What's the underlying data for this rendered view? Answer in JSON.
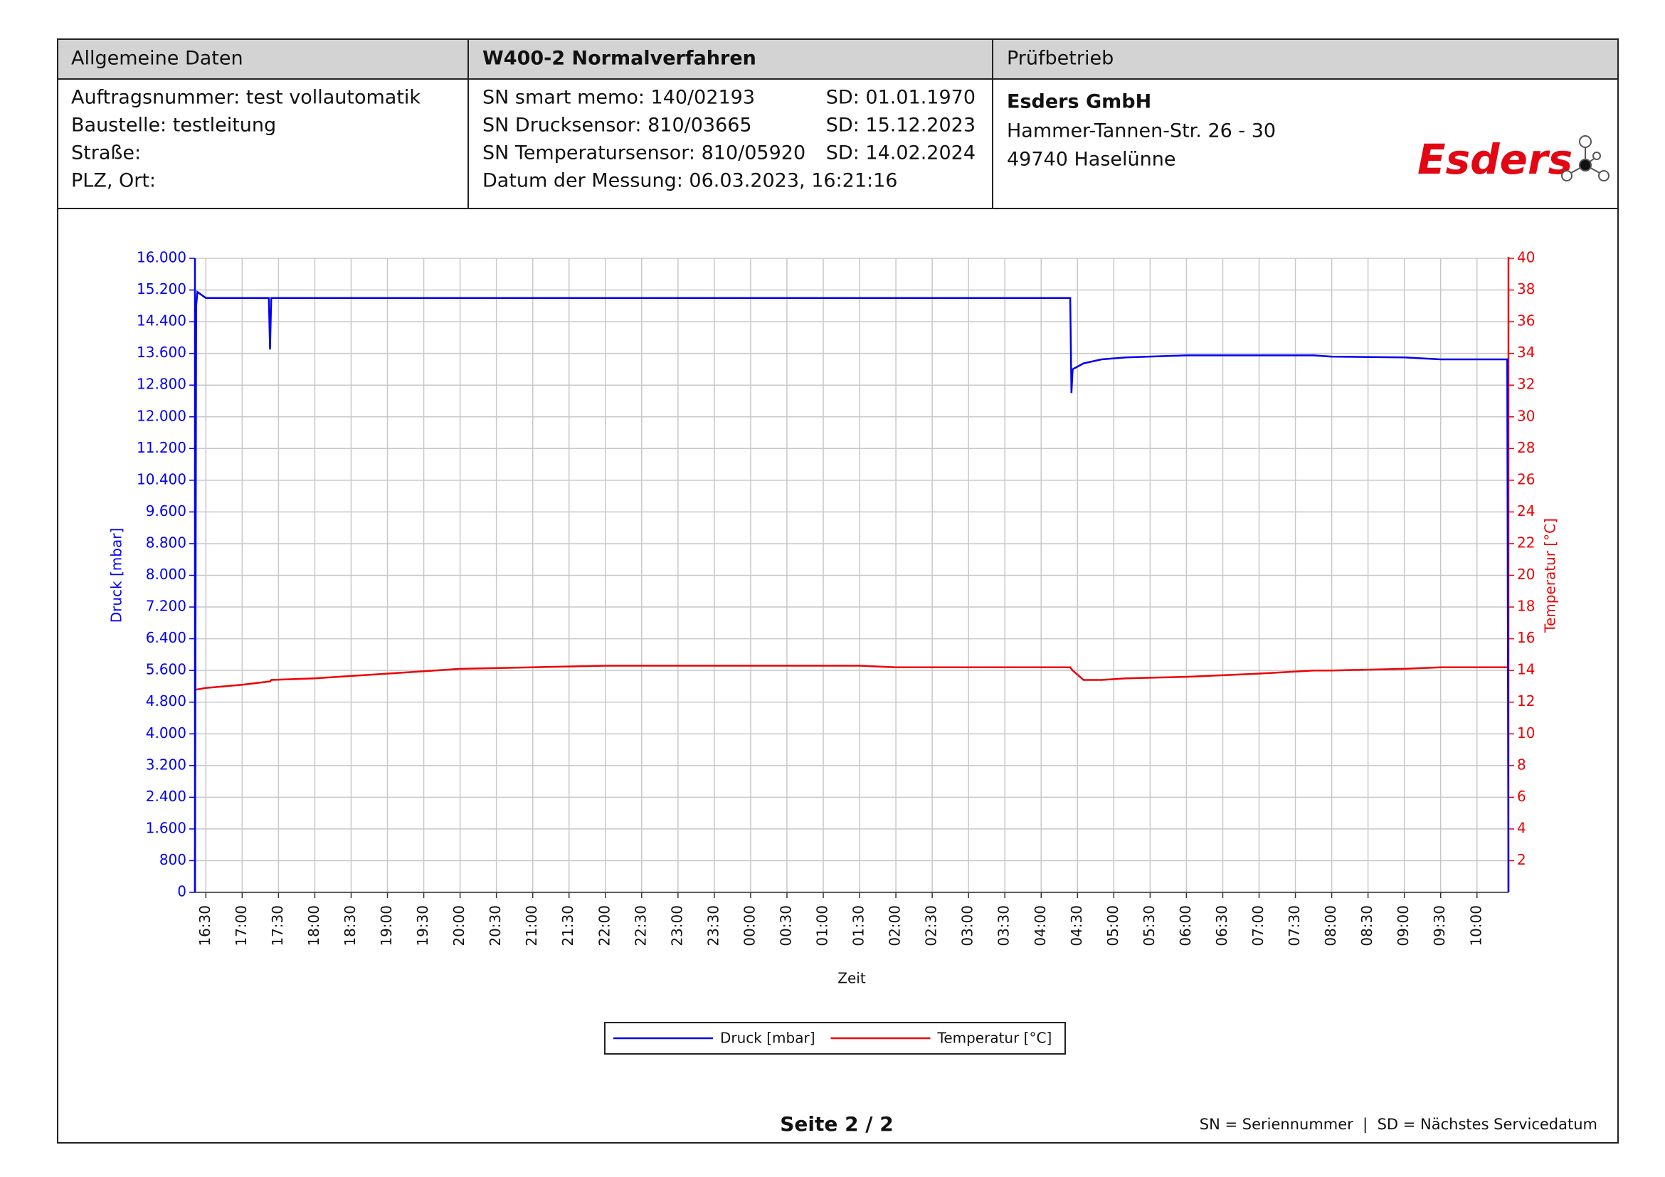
{
  "header": {
    "general_title": "Allgemeine Daten",
    "procedure_title": "W400-2 Normalverfahren",
    "company_title": "Prüfbetrieb"
  },
  "general": [
    "Auftragsnummer: test vollautomatik",
    "Baustelle: testleitung",
    "Straße:",
    "PLZ, Ort:"
  ],
  "sensors": [
    {
      "label": "SN smart memo: 140/02193",
      "service_date": "SD: 01.01.1970"
    },
    {
      "label": "SN Drucksensor: 810/03665",
      "service_date": "SD: 15.12.2023"
    },
    {
      "label": "SN Temperatursensor: 810/05920",
      "service_date": "SD: 14.02.2024"
    }
  ],
  "measurement_date": "Datum der Messung: 06.03.2023, 16:21:16",
  "company": {
    "name": "Esders GmbH",
    "street": "Hammer-Tannen-Str. 26 - 30",
    "city": "49740 Haselünne",
    "logo": "Esders"
  },
  "footer": {
    "page": "Seite 2 / 2",
    "note": "SN = Seriennummer  |  SD = Nächstes Servicedatum"
  },
  "chart_data": {
    "type": "line",
    "xlabel": "Zeit",
    "ylabel": "Druck [mbar]",
    "y2label": "Temperatur [°C]",
    "grid": true,
    "legend": "bottom",
    "x": [
      "16:21",
      "16:22",
      "16:23",
      "16:30",
      "17:00",
      "17:22",
      "17:23",
      "17:24",
      "18:00",
      "19:00",
      "20:00",
      "21:00",
      "22:00",
      "01:30",
      "02:00",
      "04:24",
      "04:25",
      "04:26",
      "04:35",
      "04:50",
      "05:10",
      "06:00",
      "07:00",
      "07:45",
      "08:00",
      "09:00",
      "09:30",
      "10:25",
      "10:26"
    ],
    "xlim": [
      "16:21",
      "10:26"
    ],
    "xticks": [
      "16:30",
      "17:00",
      "17:30",
      "18:00",
      "18:30",
      "19:00",
      "19:30",
      "20:00",
      "20:30",
      "21:00",
      "21:30",
      "22:00",
      "22:30",
      "23:00",
      "23:30",
      "00:00",
      "00:30",
      "01:00",
      "01:30",
      "02:00",
      "02:30",
      "03:00",
      "03:30",
      "04:00",
      "04:30",
      "05:00",
      "05:30",
      "06:00",
      "06:30",
      "07:00",
      "07:30",
      "08:00",
      "08:30",
      "09:00",
      "09:30",
      "10:00"
    ],
    "ylim": [
      0,
      16000
    ],
    "yticks": [
      0,
      800,
      {
        "value": 1600,
        "label": "1.600"
      },
      {
        "value": 2400,
        "label": "2.400"
      },
      {
        "value": 3200,
        "label": "3.200"
      },
      {
        "value": 4000,
        "label": "4.000"
      },
      {
        "value": 4800,
        "label": "4.800"
      },
      {
        "value": 5600,
        "label": "5.600"
      },
      {
        "value": 6400,
        "label": "6.400"
      },
      {
        "value": 7200,
        "label": "7.200"
      },
      {
        "value": 8000,
        "label": "8.000"
      },
      {
        "value": 8800,
        "label": "8.800"
      },
      {
        "value": 9600,
        "label": "9.600"
      },
      {
        "value": 10400,
        "label": "10.400"
      },
      {
        "value": 11200,
        "label": "11.200"
      },
      {
        "value": 12000,
        "label": "12.000"
      },
      {
        "value": 12800,
        "label": "12.800"
      },
      {
        "value": 13600,
        "label": "13.600"
      },
      {
        "value": 14400,
        "label": "14.400"
      },
      {
        "value": 15200,
        "label": "15.200"
      },
      {
        "value": 16000,
        "label": "16.000"
      }
    ],
    "y2lim": [
      0,
      40
    ],
    "y2ticks": [
      2,
      4,
      6,
      8,
      10,
      12,
      14,
      16,
      18,
      20,
      22,
      24,
      26,
      28,
      30,
      32,
      34,
      36,
      38,
      40
    ],
    "series": [
      {
        "name": "Druck [mbar]",
        "color": "#0000ee",
        "values": [
          0,
          14800,
          15150,
          15000,
          15000,
          15000,
          13700,
          15000,
          15000,
          15000,
          15000,
          15000,
          15000,
          15000,
          15000,
          15000,
          12600,
          13200,
          13350,
          13450,
          13500,
          13550,
          13550,
          13550,
          13520,
          13500,
          13450,
          13450,
          0
        ]
      },
      {
        "name": "Temperatur [°C]",
        "color": "#ee0000",
        "axis": "y2",
        "values": [
          null,
          12.8,
          12.8,
          12.9,
          13.1,
          13.3,
          13.3,
          13.4,
          13.5,
          13.8,
          14.1,
          14.2,
          14.3,
          14.3,
          14.2,
          14.2,
          14.1,
          14.0,
          13.4,
          13.4,
          13.5,
          13.6,
          13.8,
          14.0,
          14.0,
          14.1,
          14.2,
          14.2,
          null
        ]
      }
    ]
  }
}
